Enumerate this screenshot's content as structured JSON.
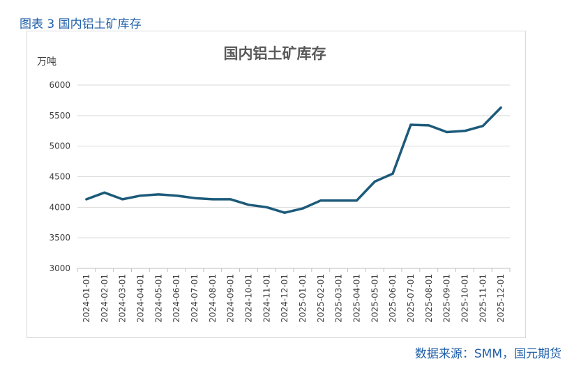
{
  "figure_caption": "图表 3 国内铝土矿库存",
  "source_note": "数据来源：SMM，国元期货",
  "colors": {
    "line": "#1c5a7a",
    "grid": "#d9d9d9",
    "caption": "#1f5fa8"
  },
  "chart_data": {
    "type": "line",
    "title": "国内铝土矿库存",
    "ylabel": "万吨",
    "xlabel": "",
    "ylim": [
      3000,
      6000
    ],
    "yticks": [
      3000,
      3500,
      4000,
      4500,
      5000,
      5500,
      6000
    ],
    "grid": true,
    "legend": "none",
    "categories": [
      "2024-01-01",
      "2024-02-01",
      "2024-03-01",
      "2024-04-01",
      "2024-05-01",
      "2024-06-01",
      "2024-07-01",
      "2024-08-01",
      "2024-09-01",
      "2024-10-01",
      "2024-11-01",
      "2024-12-01",
      "2025-01-01",
      "2025-02-01",
      "2025-03-01",
      "2025-04-01",
      "2025-05-01",
      "2025-06-01",
      "2025-07-01",
      "2025-08-01",
      "2025-09-01",
      "2025-10-01",
      "2025-11-01",
      "2025-12-01"
    ],
    "x": [
      "2024-01-01",
      "2024-01-15",
      "2024-02-01",
      "2024-02-15",
      "2024-03-01",
      "2024-03-15",
      "2024-04-01",
      "2024-04-15",
      "2024-05-01",
      "2024-05-15",
      "2024-06-01",
      "2024-06-15",
      "2024-07-01",
      "2024-07-15",
      "2024-08-01",
      "2024-08-15",
      "2024-09-01",
      "2024-09-15",
      "2024-10-01",
      "2024-10-15",
      "2024-11-01",
      "2024-11-15",
      "2024-12-01",
      "2024-12-15",
      "2025-01-01",
      "2025-01-15",
      "2025-02-01",
      "2025-02-15",
      "2025-03-01",
      "2025-03-15",
      "2025-04-01",
      "2025-04-15",
      "2025-05-01",
      "2025-05-15",
      "2025-06-01",
      "2025-06-15",
      "2025-07-01",
      "2025-07-15",
      "2025-08-01",
      "2025-08-15",
      "2025-09-01",
      "2025-09-15",
      "2025-10-01",
      "2025-10-15",
      "2025-11-01",
      "2025-11-15",
      "2025-12-01",
      "2025-12-15"
    ],
    "series": [
      {
        "values": [
          4130,
          4240,
          4130,
          4190,
          4210,
          4190,
          4150,
          4130,
          4130,
          4040,
          4000,
          3910,
          3980,
          4110,
          4110,
          4110,
          4420,
          4550,
          5350,
          5340,
          5230,
          5250,
          5330,
          5630
        ]
      }
    ]
  }
}
